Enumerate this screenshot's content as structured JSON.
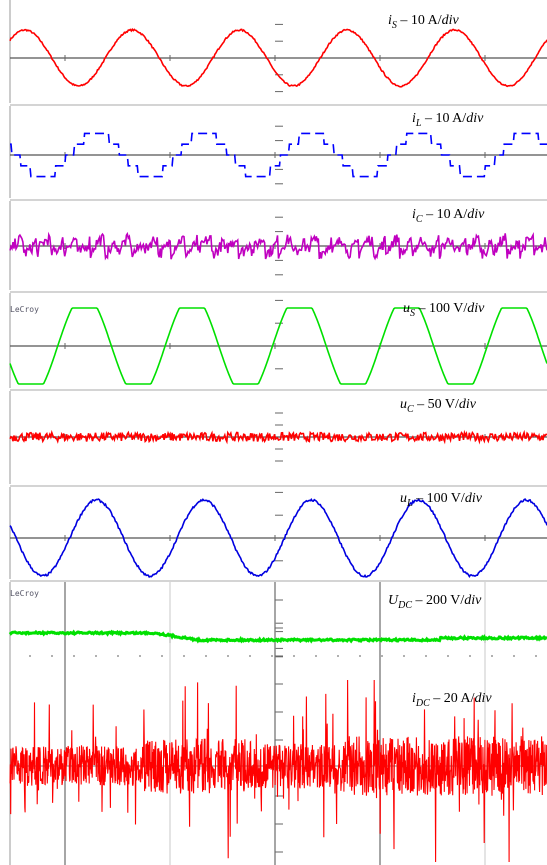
{
  "chart_data": [
    {
      "type": "line",
      "waveform": "sine",
      "color": "#ff0000",
      "cycles": 5,
      "phase_deg": 40,
      "amplitude_div": 1.0,
      "noise": 0.06,
      "label": {
        "sym": "i",
        "sub": "S",
        "rest": " – 10 A/",
        "unit_it": "div"
      }
    },
    {
      "type": "line",
      "waveform": "pwm-step",
      "color": "#0000ff",
      "cycles": 5,
      "phase_deg": 160,
      "amplitude_div": 0.9,
      "noise": 0.0,
      "label": {
        "sym": "i",
        "sub": "L",
        "rest": " – 10 A/",
        "unit_it": "div"
      }
    },
    {
      "type": "line",
      "waveform": "ripple",
      "color": "#c000c0",
      "cycles": 5,
      "phase_deg": 0,
      "amplitude_div": 0.3,
      "noise": 0.25,
      "label": {
        "sym": "i",
        "sub": "C",
        "rest": " – 10 A/",
        "unit_it": "div"
      }
    },
    {
      "type": "line",
      "waveform": "clipped-sine",
      "color": "#00e000",
      "cycles": 5,
      "phase_deg": 200,
      "amplitude_div": 1.0,
      "noise": 0.0,
      "label": {
        "sym": "u",
        "sub": "S",
        "rest": " – 100 V/",
        "unit_it": "div"
      }
    },
    {
      "type": "line",
      "waveform": "noise",
      "color": "#ff0000",
      "cycles": 0,
      "phase_deg": 0,
      "amplitude_div": 0.0,
      "noise": 0.45,
      "label": {
        "sym": "u",
        "sub": "C",
        "rest": " – 50 V/",
        "unit_it": "div"
      }
    },
    {
      "type": "line",
      "waveform": "sine",
      "color": "#0000e0",
      "cycles": 5,
      "phase_deg": 160,
      "amplitude_div": 1.0,
      "noise": 0.06,
      "label": {
        "sym": "u",
        "sub": "L",
        "rest": " – 100 V/",
        "unit_it": "div"
      }
    },
    {
      "type": "line",
      "waveform": "dc-step",
      "color": "#00e000",
      "label": {
        "sym": "U",
        "sub": "DC",
        "rest": " – 200 V/",
        "unit_it": "div"
      }
    },
    {
      "type": "line",
      "waveform": "dc-noise",
      "color": "#ff0000",
      "label": {
        "sym": "i",
        "sub": "DC",
        "rest": " – 20 A/",
        "unit_it": "div"
      }
    }
  ],
  "scope_tags": {
    "top": "LeCroy",
    "bottom": "LeCroy"
  }
}
